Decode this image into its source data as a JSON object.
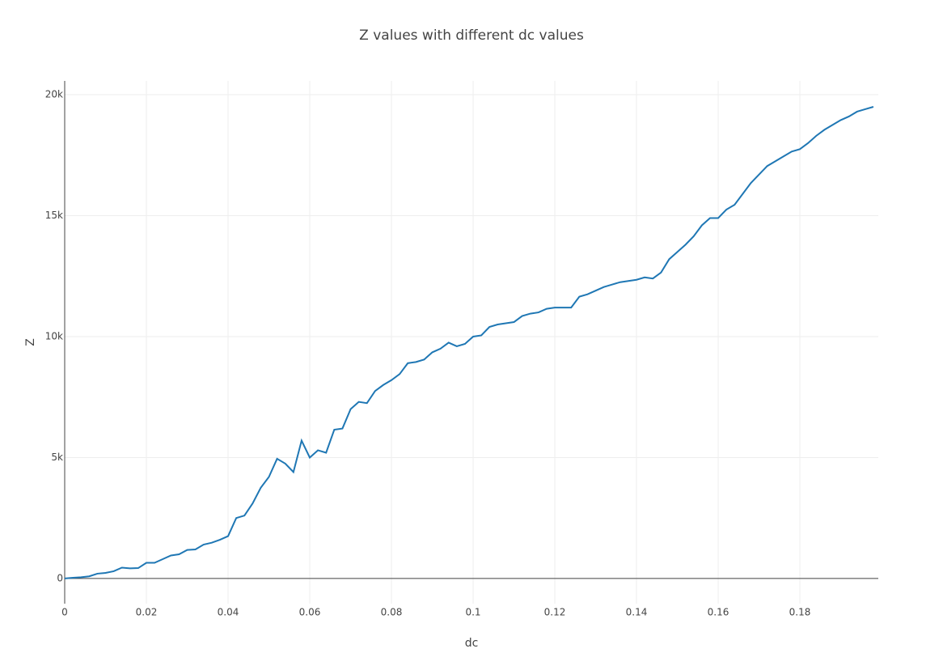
{
  "chart_data": {
    "type": "line",
    "title": "Z values with different dc values",
    "x_label": "dc",
    "y_label": "Z",
    "x": [
      0,
      0.002,
      0.004,
      0.006,
      0.008,
      0.01,
      0.012,
      0.014,
      0.016,
      0.018,
      0.02,
      0.022,
      0.024,
      0.026,
      0.028,
      0.03,
      0.032,
      0.034,
      0.036,
      0.038,
      0.04,
      0.042,
      0.044,
      0.046,
      0.048,
      0.05,
      0.052,
      0.054,
      0.056,
      0.058,
      0.06,
      0.062,
      0.064,
      0.066,
      0.068,
      0.07,
      0.072,
      0.074,
      0.076,
      0.078,
      0.08,
      0.082,
      0.084,
      0.086,
      0.088,
      0.09,
      0.092,
      0.094,
      0.096,
      0.098,
      0.1,
      0.102,
      0.104,
      0.106,
      0.108,
      0.11,
      0.112,
      0.114,
      0.116,
      0.118,
      0.12,
      0.122,
      0.124,
      0.126,
      0.128,
      0.13,
      0.132,
      0.134,
      0.136,
      0.138,
      0.14,
      0.142,
      0.144,
      0.146,
      0.148,
      0.15,
      0.152,
      0.154,
      0.156,
      0.158,
      0.16,
      0.162,
      0.164,
      0.166,
      0.168,
      0.17,
      0.172,
      0.174,
      0.176,
      0.178,
      0.18,
      0.182,
      0.184,
      0.186,
      0.188,
      0.19,
      0.192,
      0.194,
      0.196,
      0.198
    ],
    "series": [
      {
        "name": "Z",
        "color": "#1f77b4",
        "values": [
          0,
          30,
          50,
          90,
          200,
          230,
          300,
          450,
          420,
          430,
          650,
          650,
          800,
          950,
          1000,
          1180,
          1200,
          1400,
          1480,
          1600,
          1750,
          2500,
          2600,
          3100,
          3750,
          4200,
          4950,
          4750,
          4400,
          5700,
          5000,
          5300,
          5200,
          6150,
          6200,
          7000,
          7300,
          7250,
          7750,
          8000,
          8200,
          8450,
          8900,
          8950,
          9050,
          9350,
          9500,
          9750,
          9600,
          9700,
          10000,
          10050,
          10400,
          10500,
          10550,
          10600,
          10850,
          10950,
          11000,
          11150,
          11200,
          11200,
          11200,
          11650,
          11750,
          11900,
          12050,
          12150,
          12250,
          12300,
          12350,
          12450,
          12400,
          12650,
          13200,
          13500,
          13800,
          14150,
          14600,
          14900,
          14900,
          15250,
          15450,
          15900,
          16350,
          16700,
          17050,
          17250,
          17450,
          17650,
          17750,
          18000,
          18300,
          18550,
          18750,
          18950,
          19100,
          19300,
          19400,
          19500
        ]
      }
    ],
    "xlim": [
      0,
      0.1992
    ],
    "ylim": [
      -1040,
      20570
    ],
    "xticks": [
      0,
      0.02,
      0.04,
      0.06,
      0.08,
      0.1,
      0.12,
      0.14,
      0.16,
      0.18
    ],
    "yticks": [
      0,
      {
        "value": 5000,
        "label": "5k"
      },
      {
        "value": 10000,
        "label": "10k"
      },
      {
        "value": 15000,
        "label": "15k"
      },
      {
        "value": 20000,
        "label": "20k"
      }
    ],
    "grid": true
  }
}
